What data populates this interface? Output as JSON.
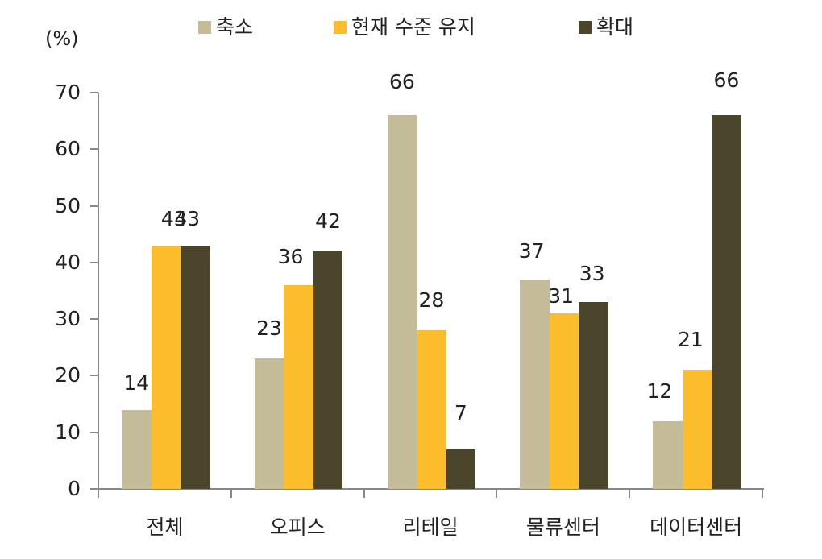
{
  "chart_data": {
    "type": "bar",
    "title": "",
    "xlabel": "",
    "ylabel": "(%)",
    "ylim": [
      0,
      70
    ],
    "yticks": [
      0,
      10,
      20,
      30,
      40,
      50,
      60,
      70
    ],
    "categories": [
      "전체",
      "오피스",
      "리테일",
      "물류센터",
      "데이터센터"
    ],
    "series": [
      {
        "name": "축소",
        "color": "#c4bb98",
        "values": [
          14,
          23,
          66,
          37,
          12
        ]
      },
      {
        "name": "현재 수준 유지",
        "color": "#fbbd2b",
        "values": [
          43,
          36,
          28,
          31,
          21
        ]
      },
      {
        "name": "확대",
        "color": "#4b452c",
        "values": [
          43,
          42,
          7,
          33,
          66
        ]
      }
    ],
    "legend_position": "top",
    "grid": false
  },
  "labels": {
    "unit": "(%)"
  }
}
